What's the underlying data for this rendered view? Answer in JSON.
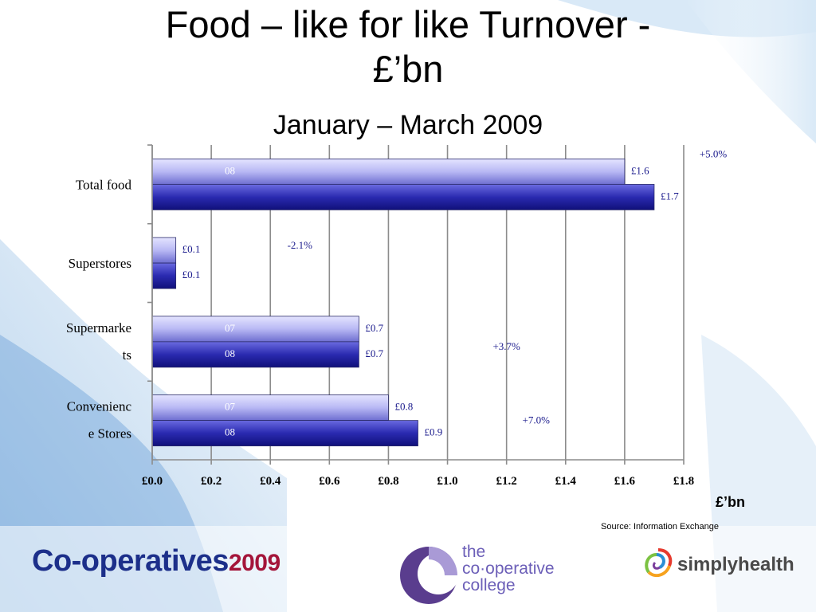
{
  "slide": {
    "title_line1": "Food – like for like Turnover -",
    "title_line2": "£’bn",
    "subtitle": "January – March 2009",
    "unit_label": "£’bn",
    "source": "Source: Information Exchange"
  },
  "logos": {
    "cooperatives_main": "Co-operatives",
    "cooperatives_year": "2009",
    "college_line1": "the",
    "college_line2": "co·operative",
    "college_line3": "college",
    "simplyhealth": "simplyhealth"
  },
  "colors": {
    "bar_2007_light": "#c8c8f8",
    "bar_2007_dark": "#7a7ad8",
    "bar_2008_light": "#5a5ad8",
    "bar_2008_dark": "#161690",
    "label_text": "#1a1a8c"
  },
  "chart_data": {
    "type": "bar",
    "orientation": "horizontal",
    "categories": [
      [
        "Total food"
      ],
      [
        "Superstores"
      ],
      [
        "Supermarke",
        "ts"
      ],
      [
        "Convenienc",
        "e Stores"
      ]
    ],
    "series": [
      {
        "values": [
          1.6,
          0.08,
          0.7,
          0.8
        ]
      },
      {
        "values": [
          1.7,
          0.08,
          0.7,
          0.9
        ]
      }
    ],
    "data_labels": [
      [
        "£1.6",
        "£0.1",
        "£0.7",
        "£0.8"
      ],
      [
        "£1.7",
        "£0.1",
        "£0.7",
        "£0.9"
      ]
    ],
    "bar_inner_labels": [
      [
        "08",
        "",
        "07",
        "07"
      ],
      [
        "",
        "",
        "08",
        "08"
      ]
    ],
    "change_labels": [
      "+5.0%",
      "-2.1%",
      "+3.7%",
      "+7.0%"
    ],
    "change_label_x": [
      1.9,
      0.5,
      1.2,
      1.3
    ],
    "x_ticks": [
      "£0.0",
      "£0.2",
      "£0.4",
      "£0.6",
      "£0.8",
      "£1.0",
      "£1.2",
      "£1.4",
      "£1.6",
      "£1.8"
    ],
    "xlim": [
      0,
      1.8
    ],
    "grid": true,
    "legend": "none"
  }
}
